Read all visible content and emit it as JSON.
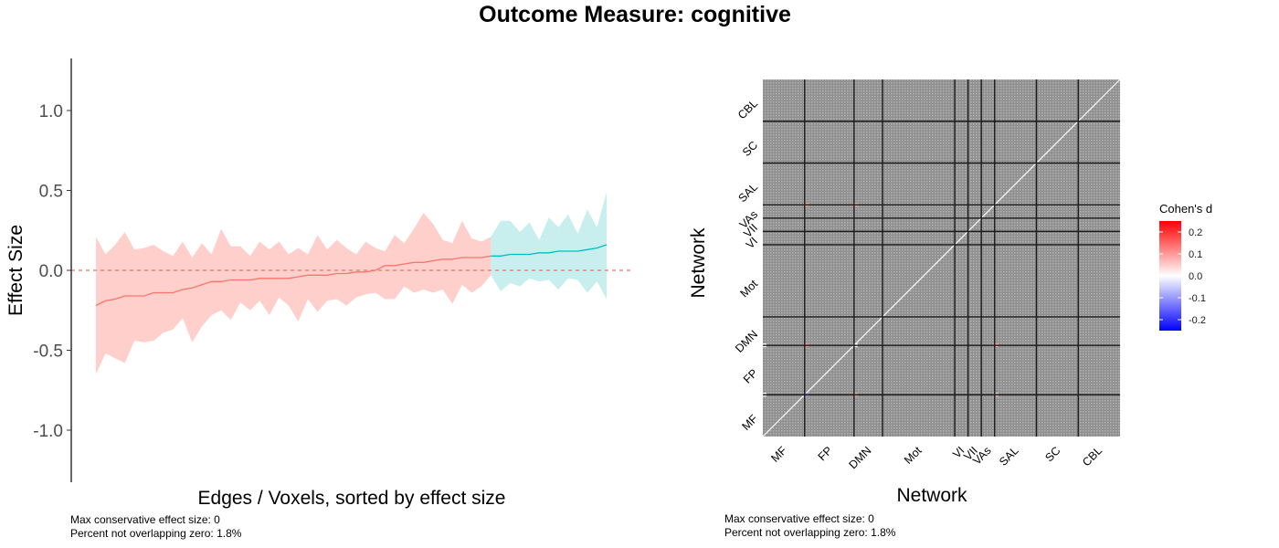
{
  "figure": {
    "title": "Outcome Measure: cognitive"
  },
  "chart_data": [
    {
      "type": "line",
      "xlabel": "Edges / Voxels, sorted by effect size",
      "ylabel": "Effect Size",
      "ylim": [
        -1.3,
        1.3
      ],
      "yticks": [
        1.0,
        0.5,
        0.0,
        -0.5,
        -1.0
      ],
      "ytick_labels": [
        "1.0",
        "0.5",
        "0.0",
        "-0.5",
        "-1.0"
      ],
      "reference_line": 0,
      "series": [
        {
          "color": "#f8766d",
          "x": [
            1,
            2,
            3,
            4,
            5,
            6,
            7,
            8,
            9,
            10,
            11,
            12,
            13,
            14,
            15,
            16,
            17,
            18,
            19,
            20,
            21,
            22,
            23,
            24,
            25,
            26,
            27,
            28,
            29,
            30,
            31,
            32,
            33,
            34,
            35,
            36,
            37,
            38,
            39,
            40,
            41,
            42
          ],
          "y": [
            -0.22,
            -0.19,
            -0.18,
            -0.16,
            -0.16,
            -0.16,
            -0.14,
            -0.14,
            -0.14,
            -0.12,
            -0.11,
            -0.09,
            -0.07,
            -0.07,
            -0.06,
            -0.06,
            -0.06,
            -0.05,
            -0.05,
            -0.05,
            -0.05,
            -0.04,
            -0.03,
            -0.03,
            -0.03,
            -0.02,
            -0.02,
            -0.01,
            -0.01,
            0.0,
            0.03,
            0.03,
            0.04,
            0.05,
            0.05,
            0.06,
            0.07,
            0.07,
            0.08,
            0.08,
            0.08,
            0.09
          ],
          "lower": [
            -0.65,
            -0.52,
            -0.55,
            -0.58,
            -0.44,
            -0.45,
            -0.44,
            -0.39,
            -0.37,
            -0.3,
            -0.45,
            -0.35,
            -0.28,
            -0.25,
            -0.31,
            -0.2,
            -0.25,
            -0.19,
            -0.28,
            -0.17,
            -0.22,
            -0.32,
            -0.18,
            -0.26,
            -0.19,
            -0.18,
            -0.22,
            -0.17,
            -0.15,
            -0.14,
            -0.18,
            -0.18,
            -0.1,
            -0.14,
            -0.12,
            -0.14,
            -0.12,
            -0.21,
            -0.09,
            -0.14,
            -0.1,
            -0.03
          ],
          "upper": [
            0.21,
            0.1,
            0.16,
            0.24,
            0.13,
            0.14,
            0.16,
            0.12,
            0.09,
            0.18,
            0.08,
            0.17,
            0.1,
            0.26,
            0.15,
            0.15,
            0.09,
            0.18,
            0.13,
            0.18,
            0.1,
            0.14,
            0.1,
            0.22,
            0.13,
            0.19,
            0.14,
            0.1,
            0.18,
            0.14,
            0.12,
            0.22,
            0.17,
            0.26,
            0.36,
            0.29,
            0.19,
            0.17,
            0.31,
            0.2,
            0.18,
            0.21
          ]
        },
        {
          "color": "#00bfc4",
          "x": [
            42,
            43,
            44,
            45,
            46,
            47,
            48,
            49,
            50,
            51,
            52,
            53,
            54
          ],
          "y": [
            0.09,
            0.09,
            0.1,
            0.1,
            0.1,
            0.11,
            0.11,
            0.12,
            0.12,
            0.12,
            0.13,
            0.14,
            0.16
          ],
          "lower": [
            -0.03,
            -0.13,
            -0.08,
            -0.1,
            -0.05,
            -0.07,
            -0.06,
            -0.12,
            -0.05,
            -0.06,
            -0.14,
            -0.07,
            -0.18
          ],
          "upper": [
            0.21,
            0.31,
            0.31,
            0.24,
            0.3,
            0.19,
            0.33,
            0.27,
            0.35,
            0.23,
            0.38,
            0.27,
            0.49
          ]
        }
      ],
      "notes": [
        "Max conservative effect size: 0",
        "Percent not overlapping zero: 1.8%"
      ]
    },
    {
      "type": "heatmap",
      "xlabel": "Network",
      "ylabel": "Network",
      "x_categories": [
        "MF",
        "FP",
        "DMN",
        "Mot",
        "VI",
        "VII",
        "VAs",
        "SAL",
        "SC",
        "CBL"
      ],
      "y_categories": [
        "MF",
        "FP",
        "DMN",
        "Mot",
        "VI",
        "VII",
        "VAs",
        "SAL",
        "SC",
        "CBL"
      ],
      "network_proportions": [
        0.11,
        0.13,
        0.075,
        0.19,
        0.035,
        0.035,
        0.035,
        0.11,
        0.11,
        0.11
      ],
      "background_color": "#999999",
      "legend": {
        "title": "Cohen's d",
        "ticks": [
          0.2,
          0.1,
          0.0,
          -0.1,
          -0.2
        ],
        "tick_labels": [
          "0.2",
          "0.1",
          "0.0",
          "-0.1",
          "-0.2"
        ],
        "range": [
          -0.25,
          0.25
        ],
        "colors": {
          "low": "#0000ff",
          "mid": "#ffffff",
          "high": "#ff0000"
        }
      },
      "notes": [
        "Max conservative effect size: 0",
        "Percent not overlapping zero: 1.8%"
      ]
    }
  ]
}
